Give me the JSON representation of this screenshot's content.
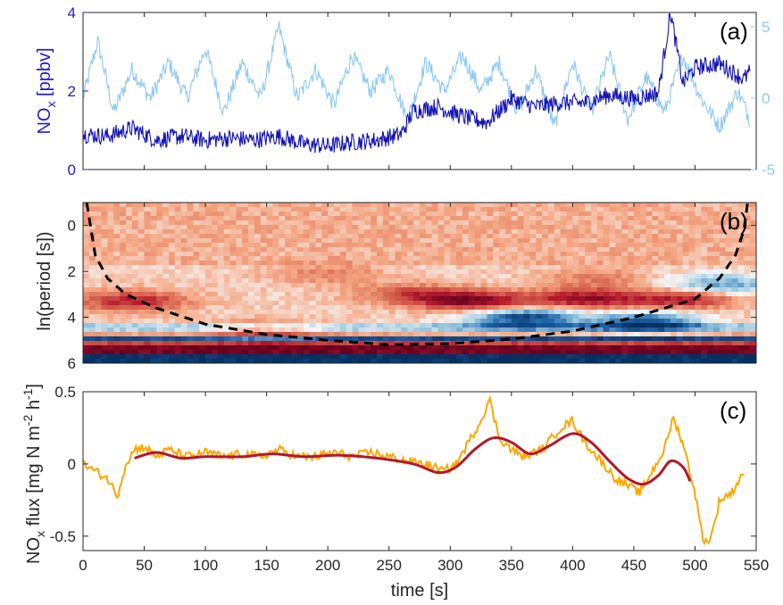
{
  "colors": {
    "nox": "#1414b4",
    "nox_axis": "#2020c8",
    "secondary": "#8ec9f2",
    "flux": "#ffa500",
    "flux_smooth": "#b2182b",
    "coi": "#000000",
    "axis": "#262626"
  },
  "chart_data": [
    {
      "panel": "a",
      "type": "line",
      "panel_label": "(a)",
      "ylabel_main": "NO",
      "ylabel_sub": "x",
      "ylabel_unit": " [ppbv]",
      "ylim": [
        0,
        4
      ],
      "yticks": [
        "0",
        "2",
        "4"
      ],
      "y2lim": [
        -5,
        6
      ],
      "y2ticks": [
        "-5",
        "0",
        "5"
      ],
      "xlim": [
        0,
        550
      ],
      "series": [
        {
          "axis": "left",
          "color": "nox",
          "x": [
            0,
            20,
            40,
            60,
            80,
            100,
            120,
            140,
            160,
            180,
            200,
            220,
            240,
            260,
            270,
            290,
            310,
            330,
            350,
            370,
            390,
            410,
            430,
            450,
            470,
            480,
            490,
            500,
            520,
            540,
            545
          ],
          "y": [
            0.9,
            0.85,
            1.05,
            0.75,
            0.85,
            0.75,
            0.8,
            0.75,
            0.85,
            0.65,
            0.6,
            0.7,
            0.75,
            0.9,
            1.5,
            1.6,
            1.35,
            1.2,
            1.8,
            1.6,
            1.7,
            1.7,
            1.9,
            1.8,
            1.95,
            4.0,
            2.2,
            2.6,
            2.7,
            2.3,
            2.5
          ]
        },
        {
          "axis": "right",
          "color": "secondary",
          "x": [
            0,
            12,
            25,
            40,
            55,
            70,
            85,
            100,
            115,
            130,
            145,
            160,
            175,
            190,
            205,
            220,
            235,
            250,
            265,
            280,
            295,
            310,
            325,
            340,
            355,
            370,
            385,
            400,
            415,
            430,
            445,
            460,
            475,
            490,
            505,
            520,
            535,
            545
          ],
          "y": [
            0,
            4,
            -1,
            2,
            0,
            2.5,
            0,
            3.5,
            -1,
            2.5,
            0,
            5,
            0,
            2,
            -0.5,
            3,
            0.5,
            2,
            -1.5,
            2.5,
            0.5,
            3,
            0.5,
            2.5,
            -1,
            2,
            -2,
            2.5,
            -1,
            3,
            -1.5,
            1.5,
            -1,
            3,
            0,
            -2,
            0.5,
            -1.5
          ]
        }
      ]
    },
    {
      "panel": "b",
      "type": "heatmap",
      "panel_label": "(b)",
      "ylabel": "ln(period [s])",
      "ylim": [
        -1,
        6
      ],
      "yticks": [
        "0",
        "2",
        "4",
        "6"
      ],
      "xlim": [
        0,
        550
      ],
      "colormap": [
        "#053061",
        "#2166ac",
        "#92c5de",
        "#f7f7f7",
        "#f4a582",
        "#d6604d",
        "#b2182b",
        "#67001f"
      ],
      "cone_of_influence": {
        "x": [
          3,
          10,
          20,
          35,
          60,
          100,
          150,
          200,
          250,
          300,
          350,
          400,
          450,
          500,
          520,
          533,
          540,
          543
        ],
        "y": [
          -1,
          1.3,
          2.3,
          3.0,
          3.6,
          4.3,
          4.75,
          5.0,
          5.2,
          5.15,
          4.95,
          4.6,
          4.0,
          3.2,
          2.3,
          1.3,
          0.2,
          -1
        ]
      },
      "features": [
        {
          "x": 40,
          "y": 3.3,
          "v": 0.7
        },
        {
          "x": 320,
          "y": 3.3,
          "v": 0.85
        },
        {
          "x": 410,
          "y": 3.2,
          "v": 0.8
        },
        {
          "x": 270,
          "y": 3.0,
          "v": 0.5
        },
        {
          "x": 360,
          "y": 4.0,
          "v": -0.9
        },
        {
          "x": 460,
          "y": 4.2,
          "v": -0.8
        },
        {
          "x": 520,
          "y": 2.6,
          "v": -0.6
        },
        {
          "x": 490,
          "y": 3.2,
          "v": 0.7
        },
        {
          "x": 150,
          "y": 4.6,
          "v": 0.4
        },
        {
          "x": 200,
          "y": 2.1,
          "v": 0.3
        },
        {
          "x": 420,
          "y": 2.3,
          "v": 0.3
        }
      ]
    },
    {
      "panel": "c",
      "type": "line",
      "panel_label": "(c)",
      "ylabel_prefix": "NO",
      "ylabel_sub": "x",
      "ylabel_text": " flux [mg N m",
      "ylabel_sup1": "-2",
      "ylabel_mid": " h",
      "ylabel_sup2": "-1",
      "ylabel_end": "]",
      "ylim": [
        -0.6,
        0.5
      ],
      "yticks": [
        "-0.5",
        "0",
        "0.5"
      ],
      "xlim": [
        0,
        550
      ],
      "xticks": [
        "0",
        "50",
        "100",
        "150",
        "200",
        "250",
        "300",
        "350",
        "400",
        "450",
        "500",
        "550"
      ],
      "xlabel": "time [s]",
      "series": [
        {
          "color": "flux",
          "x": [
            0,
            10,
            20,
            28,
            35,
            42,
            50,
            60,
            70,
            85,
            100,
            115,
            130,
            145,
            160,
            175,
            190,
            205,
            220,
            235,
            250,
            265,
            280,
            295,
            305,
            315,
            325,
            332,
            340,
            350,
            360,
            375,
            390,
            400,
            410,
            420,
            435,
            445,
            455,
            465,
            475,
            482,
            490,
            500,
            506,
            510,
            515,
            520,
            530,
            540
          ],
          "y": [
            0.0,
            -0.05,
            -0.1,
            -0.22,
            0.0,
            0.1,
            0.12,
            0.05,
            0.1,
            0.05,
            0.08,
            0.05,
            0.07,
            0.05,
            0.1,
            0.05,
            0.05,
            0.08,
            0.05,
            0.08,
            0.05,
            0.02,
            0.0,
            -0.05,
            0.0,
            0.15,
            0.3,
            0.45,
            0.18,
            0.1,
            0.05,
            0.1,
            0.25,
            0.3,
            0.15,
            0.05,
            -0.1,
            -0.15,
            -0.2,
            -0.05,
            0.1,
            0.32,
            0.15,
            -0.2,
            -0.5,
            -0.55,
            -0.45,
            -0.25,
            -0.2,
            -0.05
          ]
        },
        {
          "color": "flux_smooth",
          "x": [
            42,
            60,
            80,
            100,
            130,
            155,
            180,
            210,
            240,
            270,
            290,
            305,
            320,
            335,
            350,
            365,
            380,
            400,
            415,
            430,
            445,
            458,
            470,
            480,
            490,
            496
          ],
          "y": [
            0.04,
            0.08,
            0.04,
            0.05,
            0.05,
            0.07,
            0.05,
            0.06,
            0.04,
            0.0,
            -0.06,
            -0.02,
            0.1,
            0.18,
            0.15,
            0.07,
            0.12,
            0.21,
            0.15,
            0.02,
            -0.1,
            -0.14,
            -0.08,
            0.02,
            -0.02,
            -0.12
          ]
        }
      ]
    }
  ]
}
